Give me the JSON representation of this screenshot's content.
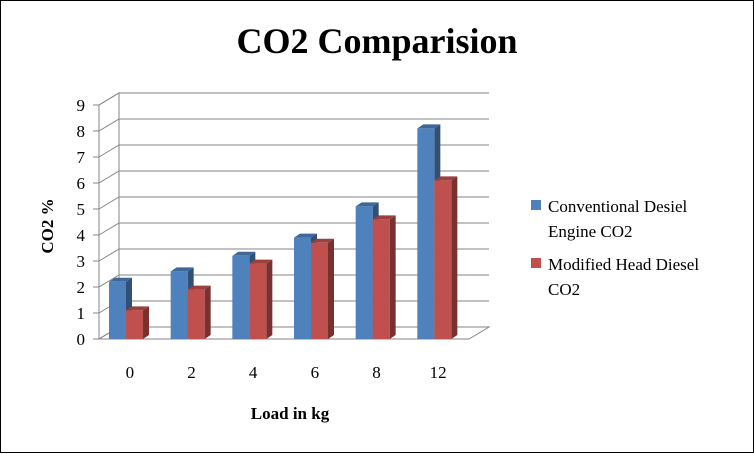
{
  "chart_data": {
    "type": "bar",
    "title": "CO2 Comparision",
    "xlabel": "Load in kg",
    "ylabel": "CO2 %",
    "categories": [
      "0",
      "2",
      "4",
      "6",
      "8",
      "12"
    ],
    "yticks": [
      "0",
      "1",
      "2",
      "3",
      "4",
      "5",
      "6",
      "7",
      "8",
      "9"
    ],
    "ylim": [
      0,
      9
    ],
    "grid": true,
    "legend_position": "right",
    "series": [
      {
        "name_lines": [
          "Conventional Desiel",
          "Engine CO2"
        ],
        "values": [
          2.2,
          2.6,
          3.2,
          3.9,
          5.1,
          8.1
        ],
        "color": "#4f81bd"
      },
      {
        "name_lines": [
          "Modified Head Diesel",
          "CO2"
        ],
        "values": [
          1.1,
          1.9,
          2.9,
          3.7,
          4.6,
          6.1
        ],
        "color": "#c0504d"
      }
    ]
  }
}
